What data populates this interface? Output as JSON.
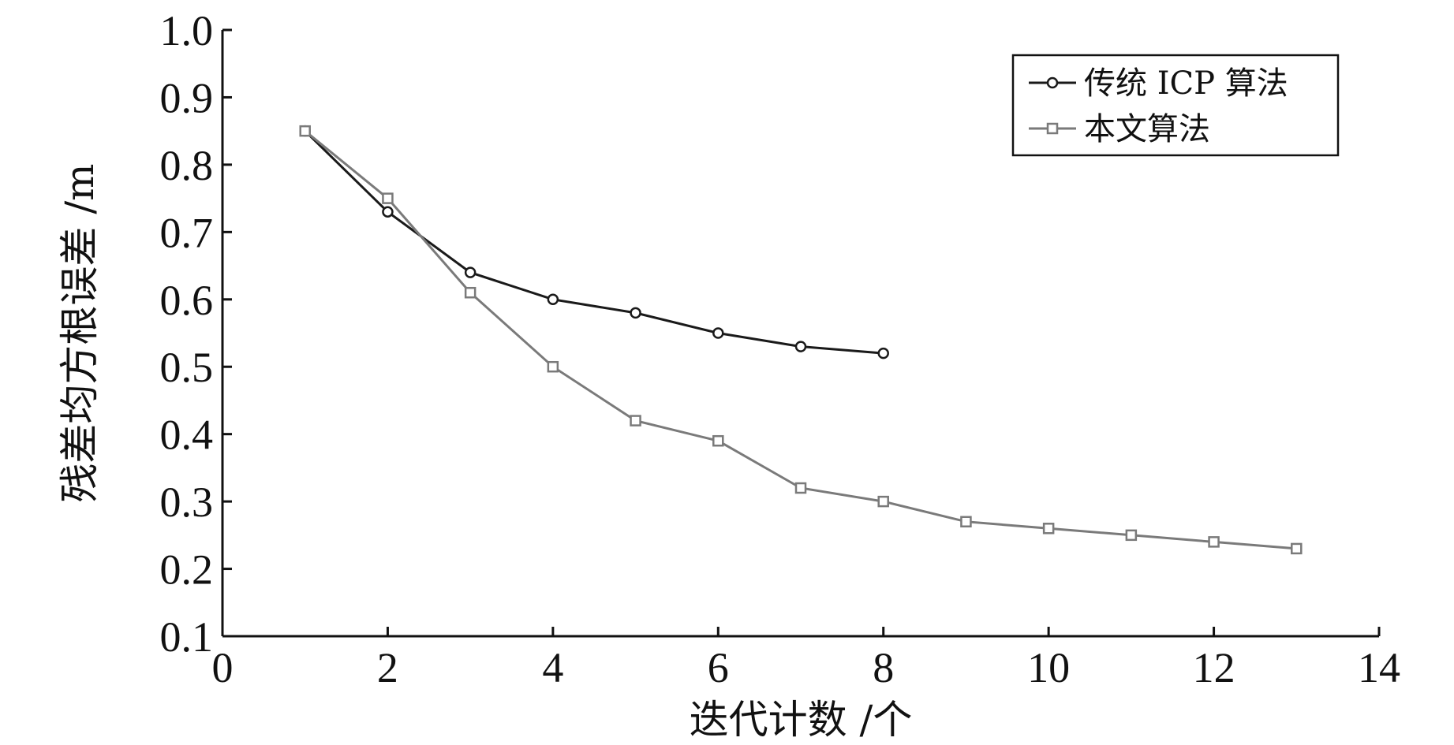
{
  "chart_data": {
    "type": "line",
    "xlabel": "迭代计数 /个",
    "ylabel": "残差均方根误差 /m",
    "xlim": [
      0,
      14
    ],
    "ylim": [
      0.1,
      1.0
    ],
    "xticks": [
      "0",
      "2",
      "4",
      "6",
      "8",
      "10",
      "12",
      "14"
    ],
    "yticks": [
      "0.1",
      "0.2",
      "0.3",
      "0.4",
      "0.5",
      "0.6",
      "0.7",
      "0.8",
      "0.9",
      "1.0"
    ],
    "grid": false,
    "legend_position": "top-right",
    "series": [
      {
        "name": "传统 ICP 算法",
        "marker": "circle",
        "color": "#1a1a1a",
        "x": [
          1,
          2,
          3,
          4,
          5,
          6,
          7,
          8
        ],
        "y": [
          0.85,
          0.73,
          0.64,
          0.6,
          0.58,
          0.55,
          0.53,
          0.52
        ]
      },
      {
        "name": "本文算法",
        "marker": "square",
        "color": "#7a7a7a",
        "x": [
          1,
          2,
          3,
          4,
          5,
          6,
          7,
          8,
          9,
          10,
          11,
          12,
          13
        ],
        "y": [
          0.85,
          0.75,
          0.61,
          0.5,
          0.42,
          0.39,
          0.32,
          0.3,
          0.27,
          0.26,
          0.25,
          0.24,
          0.23
        ]
      }
    ]
  }
}
